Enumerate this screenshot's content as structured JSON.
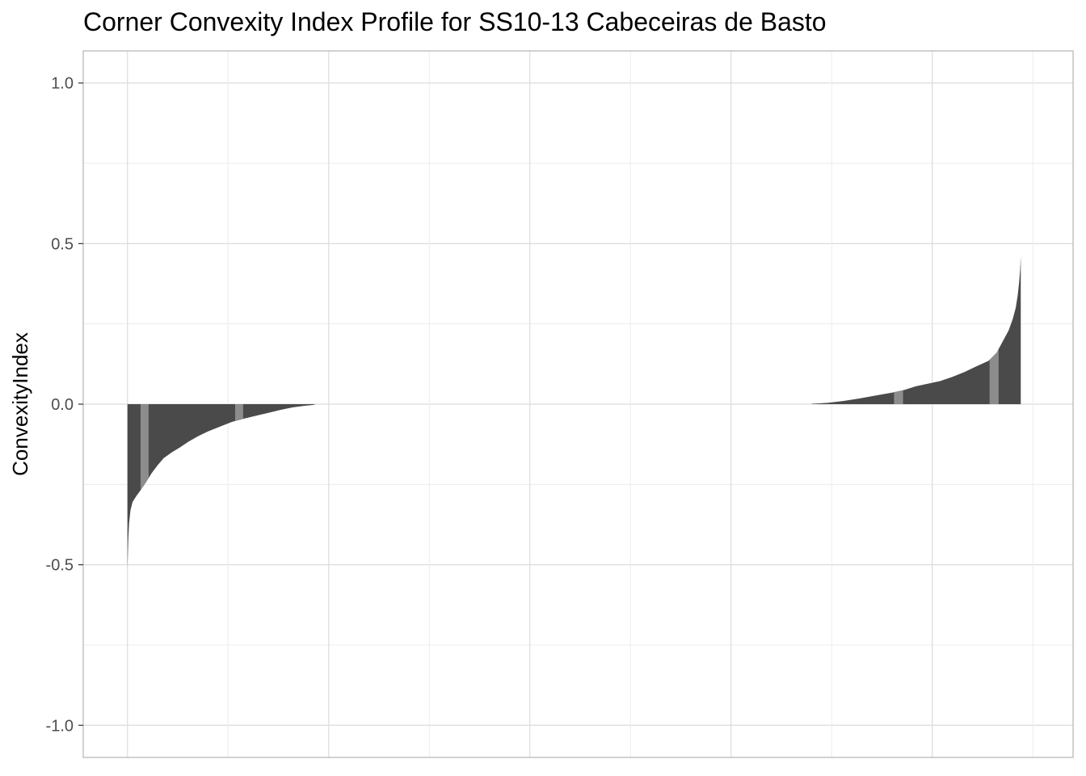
{
  "chart_data": {
    "type": "bar",
    "title": "Corner Convexity Index Profile for SS10-13 Cabeceiras de Basto",
    "xlabel": "",
    "ylabel": "ConvexityIndex",
    "ylim": [
      -1.1,
      1.1
    ],
    "yticks": [
      -1.0,
      -0.5,
      0.0,
      0.5,
      1.0
    ],
    "ytick_labels": [
      "-1.0",
      "-0.5",
      "0.0",
      "0.5",
      "1.0"
    ],
    "xlim": [
      -0.22,
      4.7
    ],
    "x_gridlines": [
      0,
      0.5,
      1,
      1.5,
      2,
      2.5,
      3,
      3.5,
      4,
      4.5
    ],
    "grid": true,
    "colors": {
      "bar": "#4a4a4a",
      "highlight": "#8c8c8c",
      "grid_major": "#dcdcdc",
      "grid_minor": "#ececec",
      "panel_border": "#b3b3b3",
      "text": "#4d4d4d"
    },
    "series": [
      {
        "values_description_free": true,
        "segments": [
          {
            "x_start": 0.0,
            "x_end": 0.93,
            "y_first": -0.51,
            "y_last": -0.002,
            "profile": [
              [
                0.0,
                -0.51
              ],
              [
                0.004,
                -0.42
              ],
              [
                0.008,
                -0.37
              ],
              [
                0.015,
                -0.33
              ],
              [
                0.025,
                -0.305
              ],
              [
                0.045,
                -0.285
              ],
              [
                0.065,
                -0.268
              ],
              [
                0.09,
                -0.245
              ],
              [
                0.12,
                -0.215
              ],
              [
                0.15,
                -0.19
              ],
              [
                0.18,
                -0.168
              ],
              [
                0.22,
                -0.15
              ],
              [
                0.26,
                -0.135
              ],
              [
                0.3,
                -0.118
              ],
              [
                0.35,
                -0.1
              ],
              [
                0.4,
                -0.085
              ],
              [
                0.46,
                -0.07
              ],
              [
                0.52,
                -0.055
              ],
              [
                0.58,
                -0.045
              ],
              [
                0.64,
                -0.036
              ],
              [
                0.7,
                -0.027
              ],
              [
                0.76,
                -0.018
              ],
              [
                0.82,
                -0.01
              ],
              [
                0.88,
                -0.005
              ],
              [
                0.93,
                -0.002
              ]
            ],
            "highlights": [
              [
                0.065,
                0.105
              ],
              [
                0.535,
                0.575
              ]
            ]
          },
          {
            "x_start": 3.4,
            "x_end": 4.44,
            "y_first": 0.001,
            "y_last": 0.46,
            "profile": [
              [
                3.4,
                0.001
              ],
              [
                3.48,
                0.004
              ],
              [
                3.56,
                0.01
              ],
              [
                3.64,
                0.018
              ],
              [
                3.72,
                0.027
              ],
              [
                3.8,
                0.036
              ],
              [
                3.86,
                0.044
              ],
              [
                3.92,
                0.056
              ],
              [
                3.98,
                0.064
              ],
              [
                4.04,
                0.072
              ],
              [
                4.1,
                0.085
              ],
              [
                4.16,
                0.1
              ],
              [
                4.22,
                0.118
              ],
              [
                4.28,
                0.135
              ],
              [
                4.32,
                0.16
              ],
              [
                4.35,
                0.195
              ],
              [
                4.38,
                0.23
              ],
              [
                4.4,
                0.265
              ],
              [
                4.415,
                0.3
              ],
              [
                4.425,
                0.34
              ],
              [
                4.432,
                0.38
              ],
              [
                4.437,
                0.42
              ],
              [
                4.44,
                0.46
              ]
            ],
            "highlights": [
              [
                3.81,
                3.855
              ],
              [
                4.285,
                4.33
              ]
            ]
          }
        ]
      }
    ]
  }
}
